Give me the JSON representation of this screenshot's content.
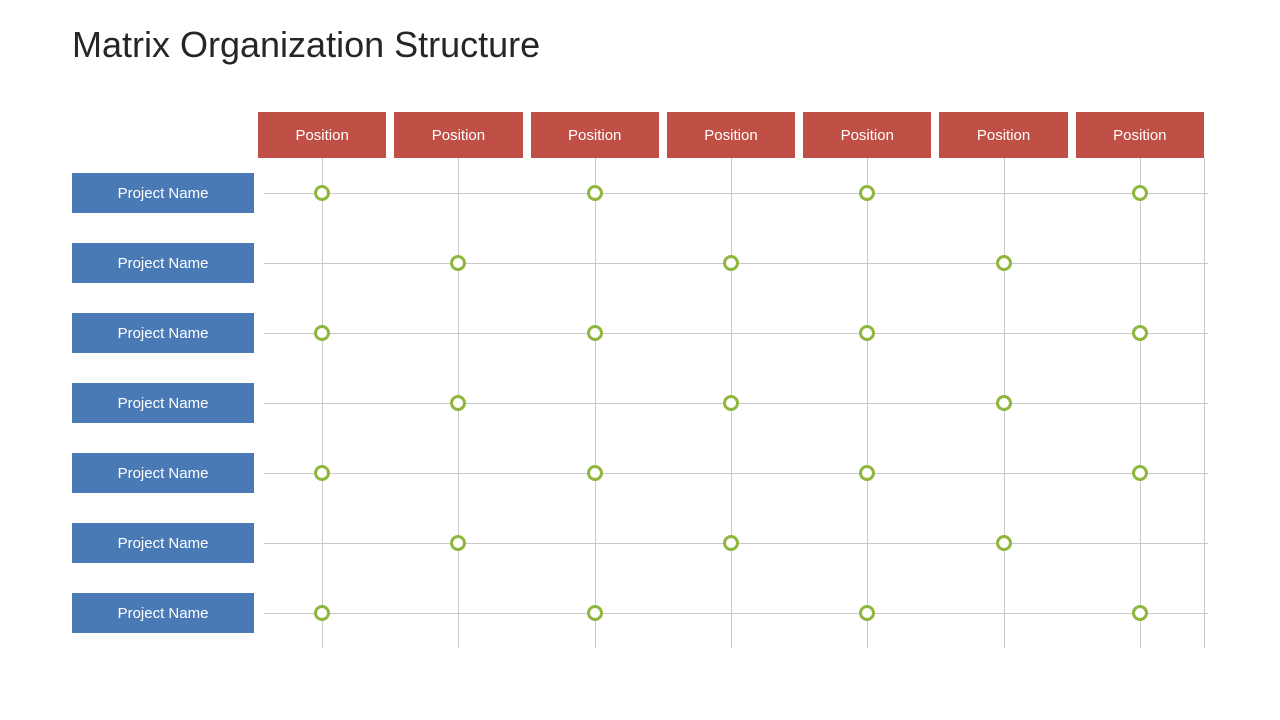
{
  "title": {
    "text": "Matrix Organization Structure",
    "fontsize": 36,
    "color": "#262626"
  },
  "layout": {
    "background": "#ffffff",
    "grid_line_color": "#c8c8c8",
    "position_header": {
      "bg": "#c05046",
      "fg": "#ffffff",
      "fontsize": 15
    },
    "project_header": {
      "bg": "#4a7ab5",
      "fg": "#ffffff",
      "fontsize": 15
    },
    "marker": {
      "stroke": "#8fb73e",
      "stroke_width": 3,
      "diameter": 16,
      "fill": "#ffffff"
    }
  },
  "positions": [
    "Position",
    "Position",
    "Position",
    "Position",
    "Position",
    "Position",
    "Position"
  ],
  "projects": [
    "Project Name",
    "Project Name",
    "Project Name",
    "Project Name",
    "Project Name",
    "Project Name",
    "Project Name"
  ],
  "assignments": [
    [
      1,
      0,
      1,
      0,
      1,
      0,
      1
    ],
    [
      0,
      1,
      0,
      1,
      0,
      1,
      0
    ],
    [
      1,
      0,
      1,
      0,
      1,
      0,
      1
    ],
    [
      0,
      1,
      0,
      1,
      0,
      1,
      0
    ],
    [
      1,
      0,
      1,
      0,
      1,
      0,
      1
    ],
    [
      0,
      1,
      0,
      1,
      0,
      1,
      0
    ],
    [
      1,
      0,
      1,
      0,
      1,
      0,
      1
    ]
  ]
}
